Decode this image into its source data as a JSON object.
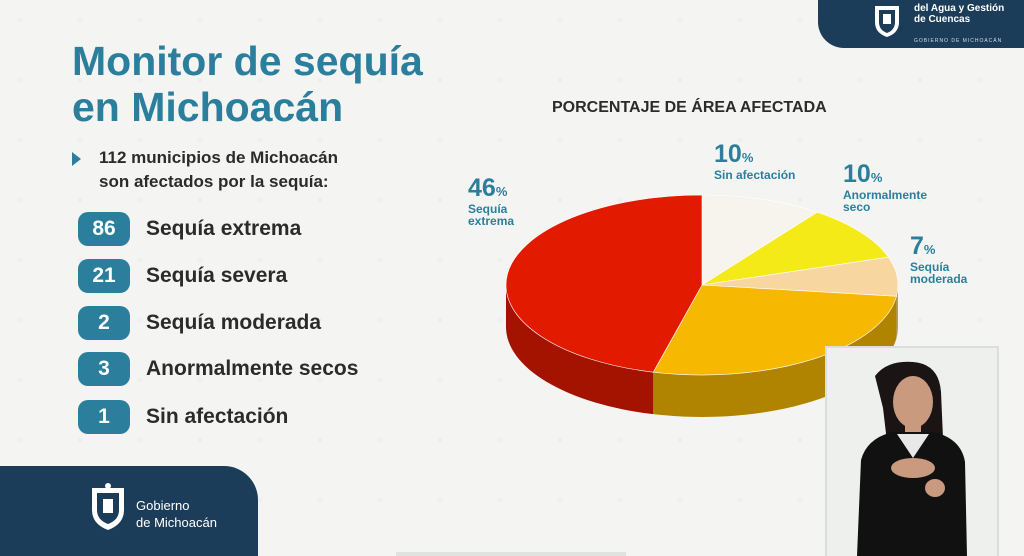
{
  "header": {
    "org_line1": "Secretaría del Agua y Gestión",
    "org_line2": "del Agua y Gestión",
    "org_line3": "de Cuencas",
    "org_sub": "GOBIERNO DE MICHOACÁN"
  },
  "title_line1": "Monitor de sequía",
  "title_line2": "en Michoacán",
  "intro_line1": "112 municipios de Michoacán",
  "intro_line2": "son afectados por la sequía:",
  "stats": [
    {
      "value": "86",
      "label": "Sequía extrema"
    },
    {
      "value": "21",
      "label": "Sequía severa"
    },
    {
      "value": "2",
      "label": "Sequía moderada"
    },
    {
      "value": "3",
      "label": "Anormalmente secos"
    },
    {
      "value": "1",
      "label": "Sin afectación"
    }
  ],
  "footer": {
    "line1": "Gobierno",
    "line2": "de Michoacán"
  },
  "colors": {
    "accent": "#2b7f9c",
    "navy": "#1c3d5a",
    "extreme": "#e21a00",
    "severe": "#f6b800",
    "moderate": "#f7d6a0",
    "abnormal": "#f4ea18",
    "none": "#f7f4ee"
  },
  "chart_data": {
    "type": "pie",
    "title": "PORCENTAJE DE ÁREA AFECTADA",
    "slices": [
      {
        "label": "Sin afectación",
        "value": 10
      },
      {
        "label": "Anormalmente seco",
        "value": 10
      },
      {
        "label": "Sequía moderada",
        "value": 7
      },
      {
        "label": "",
        "value": 27
      },
      {
        "label": "Sequía extrema",
        "value": 46
      }
    ],
    "labels": {
      "none": {
        "num": "10",
        "sym": "%",
        "text": "Sin afectación"
      },
      "abnormal": {
        "num": "10",
        "sym": "%",
        "text1": "Anormalmente",
        "text2": "seco"
      },
      "moderate": {
        "num": "7",
        "sym": "%",
        "text1": "Sequía",
        "text2": "moderada"
      },
      "extreme": {
        "num": "46",
        "sym": "%",
        "text1": "Sequía",
        "text2": "extrema"
      }
    }
  }
}
